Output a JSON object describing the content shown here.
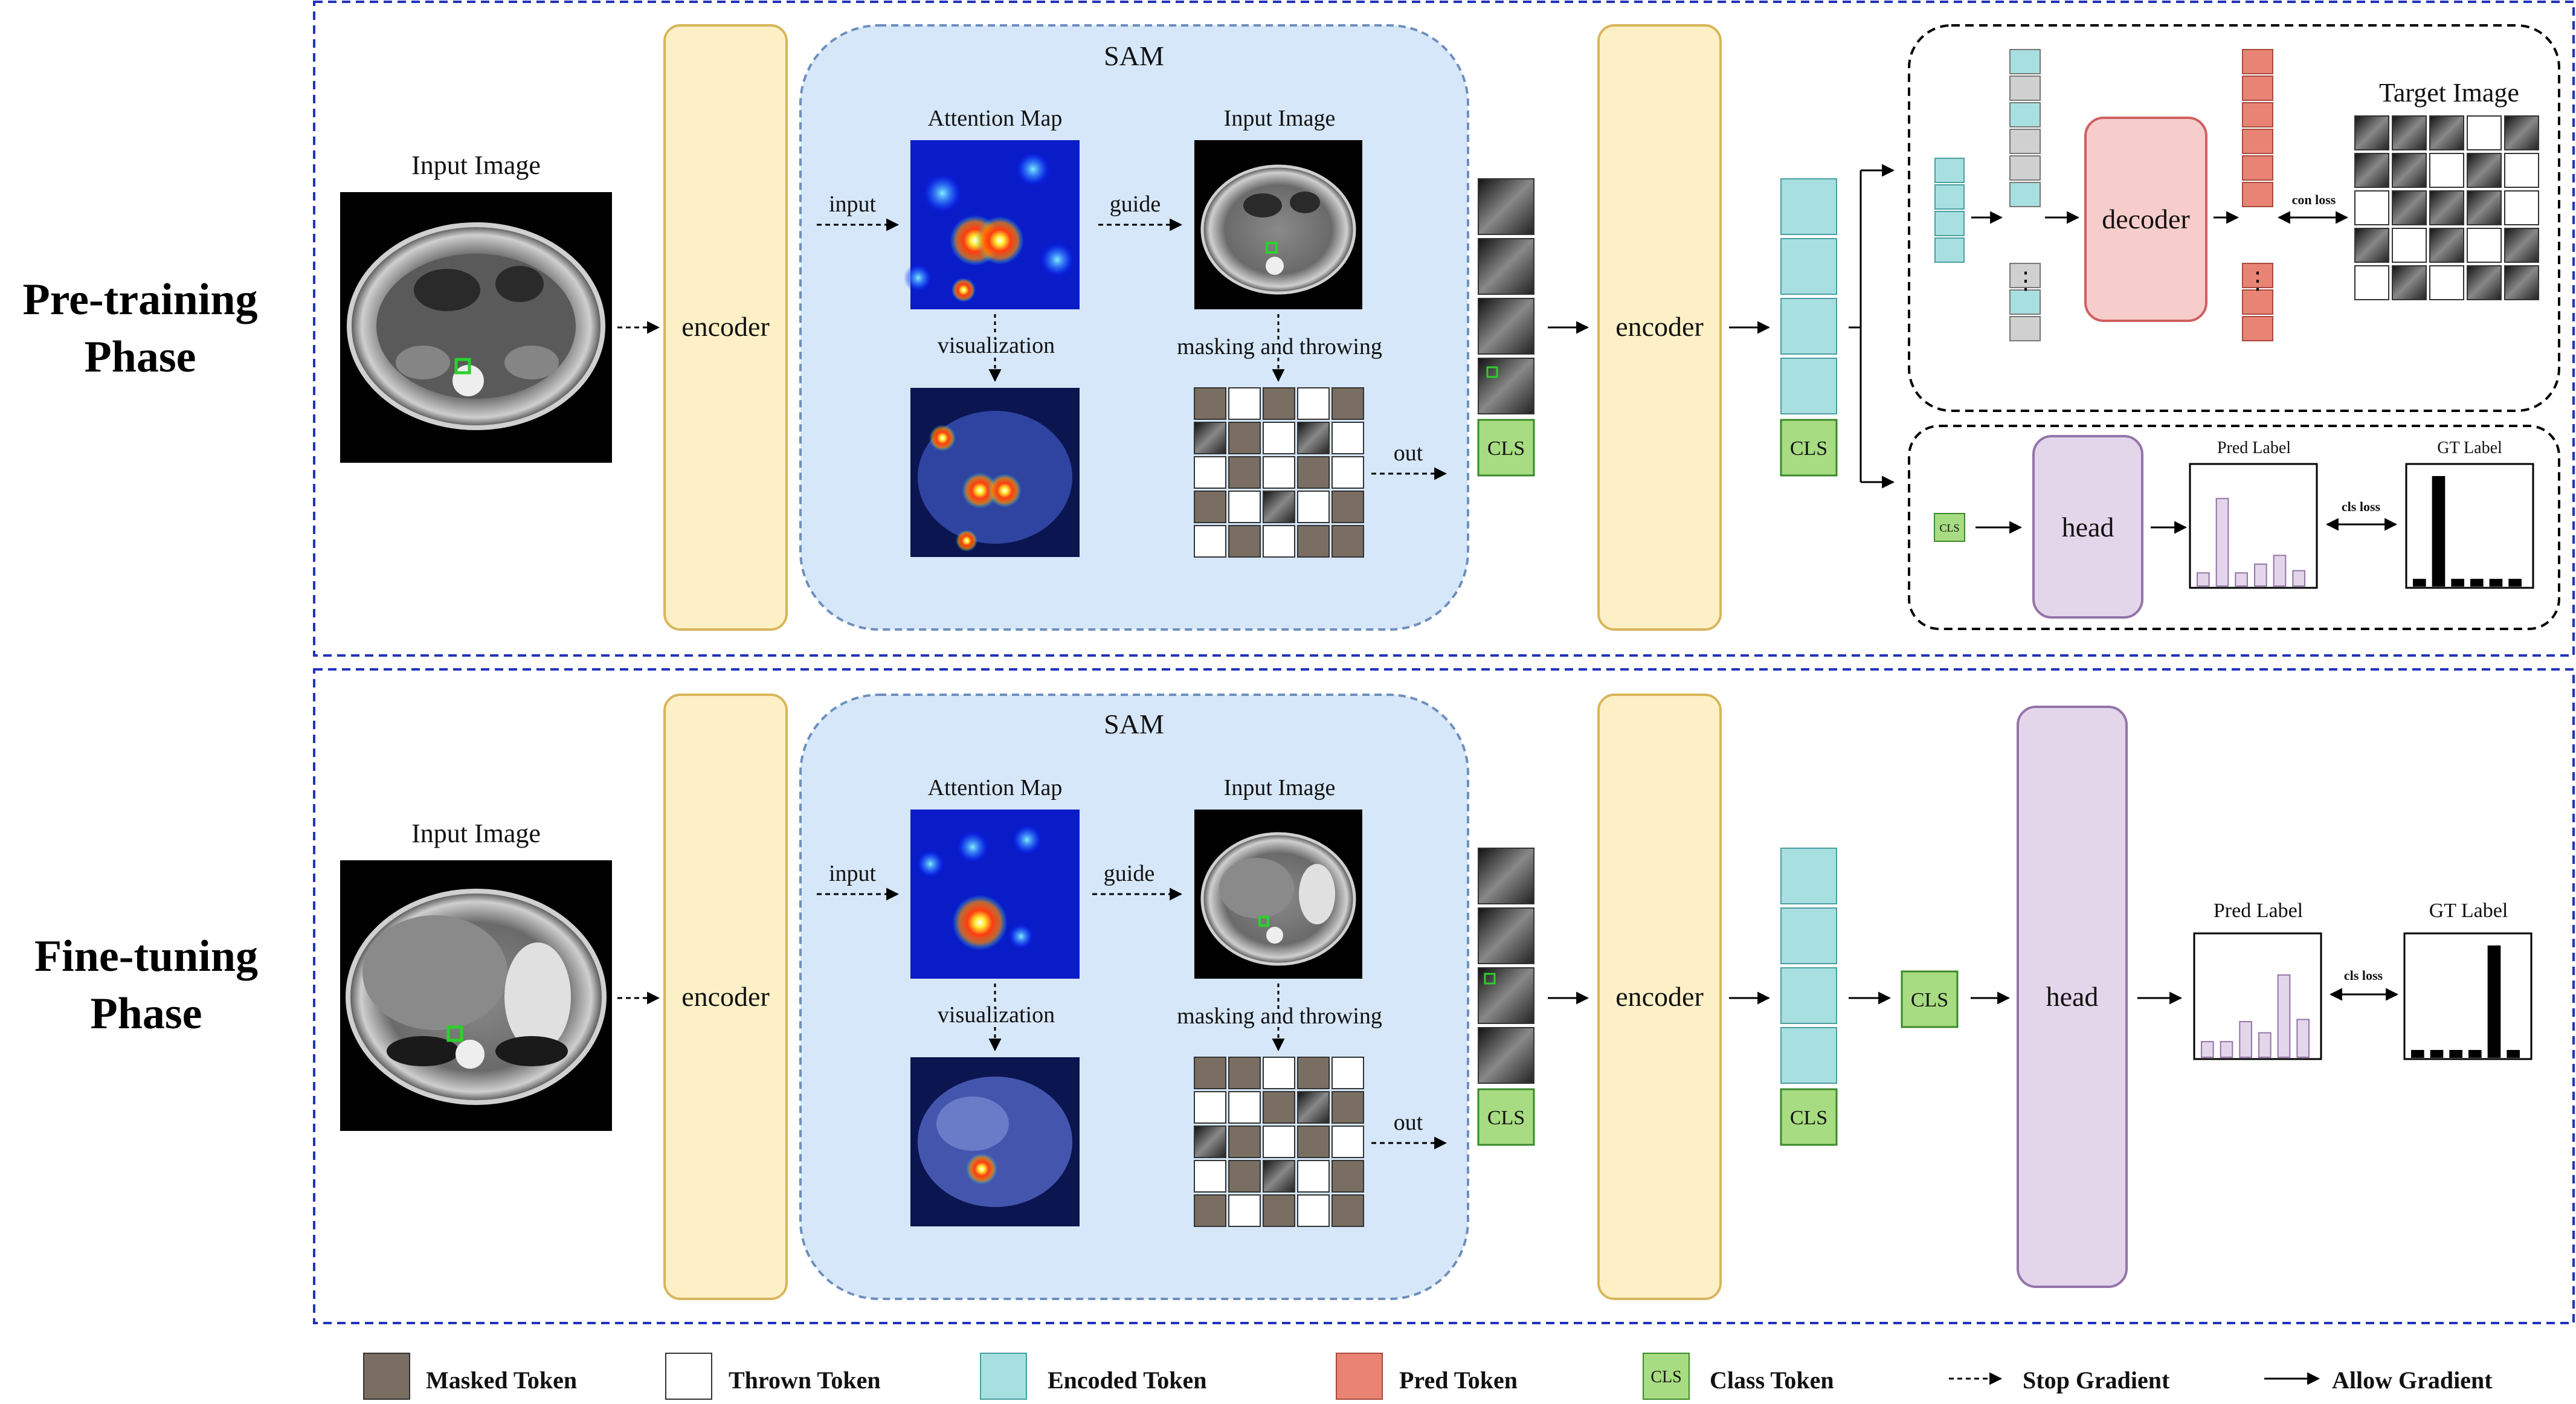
{
  "phases": {
    "pretrain": {
      "line1": "Pre-training",
      "line2": "Phase"
    },
    "finetune": {
      "line1": "Fine-tuning",
      "line2": "Phase"
    }
  },
  "labels": {
    "input_image": "Input Image",
    "encoder": "encoder",
    "sam": "SAM",
    "attention_map": "Attention Map",
    "input": "input",
    "guide": "guide",
    "visualization": "visualization",
    "masking_and_throwing": "masking and throwing",
    "out": "out",
    "cls": "CLS",
    "decoder": "decoder",
    "target_image": "Target Image",
    "con_loss": "con loss",
    "head": "head",
    "pred_label": "Pred Label",
    "gt_label": "GT Label",
    "cls_loss": "cls loss",
    "ellipsis": "⋮"
  },
  "legend": [
    {
      "key": "masked",
      "label": "Masked Token",
      "color": "#7a6e62"
    },
    {
      "key": "thrown",
      "label": "Thrown Token",
      "color": "#ffffff"
    },
    {
      "key": "encoded",
      "label": "Encoded Token",
      "color": "#a8dfe0"
    },
    {
      "key": "pred",
      "label": "Pred Token",
      "color": "#e98474"
    },
    {
      "key": "class",
      "label": "Class Token",
      "color": "#a8dc82",
      "glyph": "CLS"
    },
    {
      "key": "stop",
      "label": "Stop Gradient"
    },
    {
      "key": "allow",
      "label": "Allow Gradient"
    }
  ],
  "colors": {
    "encoder_fill": "#fdf0c6",
    "encoder_stroke": "#d9b55a",
    "sam_fill": "#d6e7f9",
    "sam_stroke": "#6d8fbd",
    "decoder_fill": "#f7cdcb",
    "decoder_stroke": "#cf5f5f",
    "head_fill": "#e4d6ea",
    "head_stroke": "#9474a8",
    "phase_border": "#2233bb"
  }
}
